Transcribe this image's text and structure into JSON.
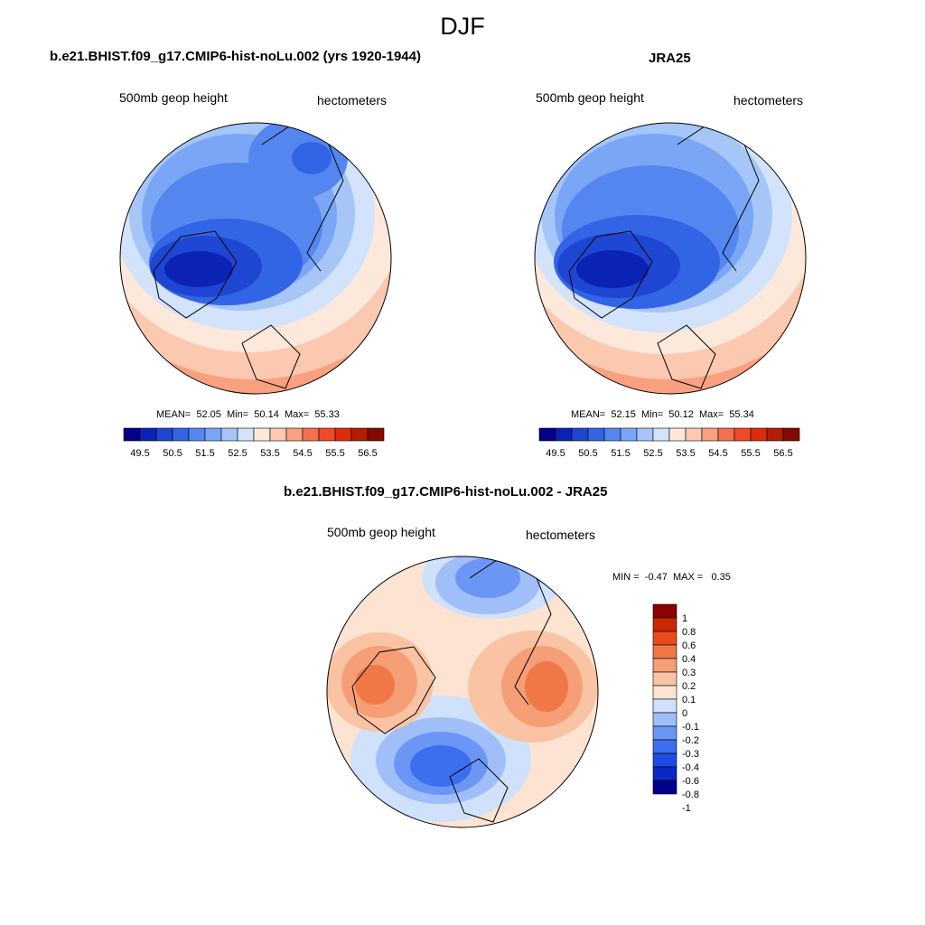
{
  "page": {
    "season": "DJF"
  },
  "colors": {
    "abs_palette": [
      "#00008b",
      "#0a23b4",
      "#1e46d2",
      "#3264e6",
      "#5586f0",
      "#7aa6f5",
      "#a6c6f8",
      "#d2e3fb",
      "#fde8dc",
      "#fbc8b0",
      "#f8a080",
      "#f57050",
      "#f04a28",
      "#dc2c0c",
      "#b41e00",
      "#820a00"
    ],
    "diff_palette": [
      "#00008b",
      "#0a28c8",
      "#1e4be6",
      "#3c6ef0",
      "#6c96f5",
      "#a0bef8",
      "#d0e1fb",
      "#fde3d2",
      "#fac3a4",
      "#f69e76",
      "#f07848",
      "#ea4a1c",
      "#c82800",
      "#8c0000"
    ]
  },
  "panels": [
    {
      "title": "b.e21.BHIST.f09_g17.CMIP6-hist-noLu.002 (yrs 1920-1944)",
      "left_label": "500mb geop height",
      "right_label": "hectometers",
      "stats": {
        "mean_label": "MEAN=",
        "mean": "52.05",
        "min_label": "Min=",
        "min": "50.14",
        "max_label": "Max=",
        "max": "55.33"
      }
    },
    {
      "title": "JRA25",
      "left_label": "500mb geop height",
      "right_label": "hectometers",
      "stats": {
        "mean_label": "MEAN=",
        "mean": "52.15",
        "min_label": "Min=",
        "min": "50.12",
        "max_label": "Max=",
        "max": "55.34"
      }
    },
    {
      "title": "b.e21.BHIST.f09_g17.CMIP6-hist-noLu.002 - JRA25",
      "left_label": "500mb geop height",
      "right_label": "hectometers",
      "stats": {
        "min_label": "MIN =",
        "min": "-0.47",
        "max_label": "MAX =",
        "max": "0.35"
      }
    }
  ],
  "colorbars": {
    "absolute_labels": [
      "49.5",
      "50.5",
      "51.5",
      "52.5",
      "53.5",
      "54.5",
      "55.5",
      "56.5"
    ],
    "difference_labels": [
      "1",
      "0.8",
      "0.6",
      "0.4",
      "0.3",
      "0.2",
      "0.1",
      "0",
      "-0.1",
      "-0.2",
      "-0.3",
      "-0.4",
      "-0.6",
      "-0.8",
      "-1"
    ]
  }
}
